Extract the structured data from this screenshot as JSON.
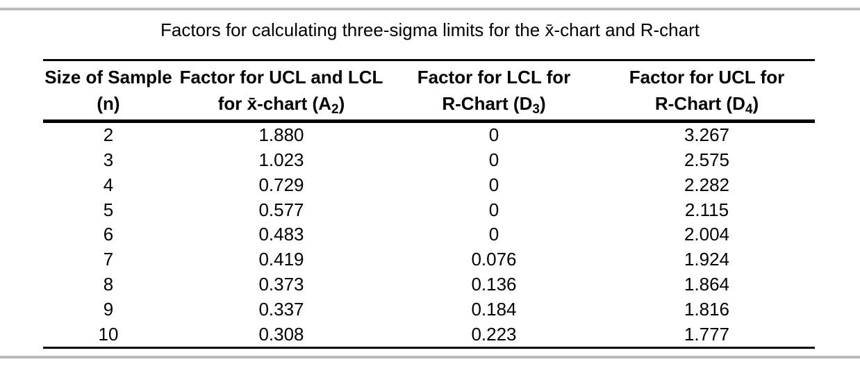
{
  "page": {
    "title": "Factors for calculating three-sigma limits for the x̄-chart and R-chart"
  },
  "table": {
    "header": {
      "col1": {
        "line1": "Size of Sample",
        "line2": "(n)"
      },
      "col2": {
        "line1": "Factor for UCL and LCL",
        "line2_pre": "for x̄-chart (A",
        "line2_sub": "2",
        "line2_post": ")"
      },
      "col3": {
        "line1": "Factor for LCL for",
        "line2_pre": "R-Chart (D",
        "line2_sub": "3",
        "line2_post": ")"
      },
      "col4": {
        "line1": "Factor for UCL for",
        "line2_pre": "R-Chart (D",
        "line2_sub": "4",
        "line2_post": ")"
      }
    },
    "rows": [
      {
        "n": "2",
        "a2": "1.880",
        "d3": "0",
        "d4": "3.267"
      },
      {
        "n": "3",
        "a2": "1.023",
        "d3": "0",
        "d4": "2.575"
      },
      {
        "n": "4",
        "a2": "0.729",
        "d3": "0",
        "d4": "2.282"
      },
      {
        "n": "5",
        "a2": "0.577",
        "d3": "0",
        "d4": "2.115"
      },
      {
        "n": "6",
        "a2": "0.483",
        "d3": "0",
        "d4": "2.004"
      },
      {
        "n": "7",
        "a2": "0.419",
        "d3": "0.076",
        "d4": "1.924"
      },
      {
        "n": "8",
        "a2": "0.373",
        "d3": "0.136",
        "d4": "1.864"
      },
      {
        "n": "9",
        "a2": "0.337",
        "d3": "0.184",
        "d4": "1.816"
      },
      {
        "n": "10",
        "a2": "0.308",
        "d3": "0.223",
        "d4": "1.777"
      }
    ]
  },
  "chart_data": {
    "type": "table",
    "title": "Factors for calculating three-sigma limits for the x̄-chart and R-chart",
    "columns": [
      "Size of Sample (n)",
      "Factor for UCL and LCL for x̄-chart (A2)",
      "Factor for LCL for R-Chart (D3)",
      "Factor for UCL for R-Chart (D4)"
    ],
    "n": [
      2,
      3,
      4,
      5,
      6,
      7,
      8,
      9,
      10
    ],
    "A2": [
      1.88,
      1.023,
      0.729,
      0.577,
      0.483,
      0.419,
      0.373,
      0.337,
      0.308
    ],
    "D3": [
      0,
      0,
      0,
      0,
      0,
      0.076,
      0.136,
      0.184,
      0.223
    ],
    "D4": [
      3.267,
      2.575,
      2.282,
      2.115,
      2.004,
      1.924,
      1.864,
      1.816,
      1.777
    ]
  },
  "colors": {
    "divider_gray": "#bbbbbb",
    "table_line_black": "#000000"
  }
}
